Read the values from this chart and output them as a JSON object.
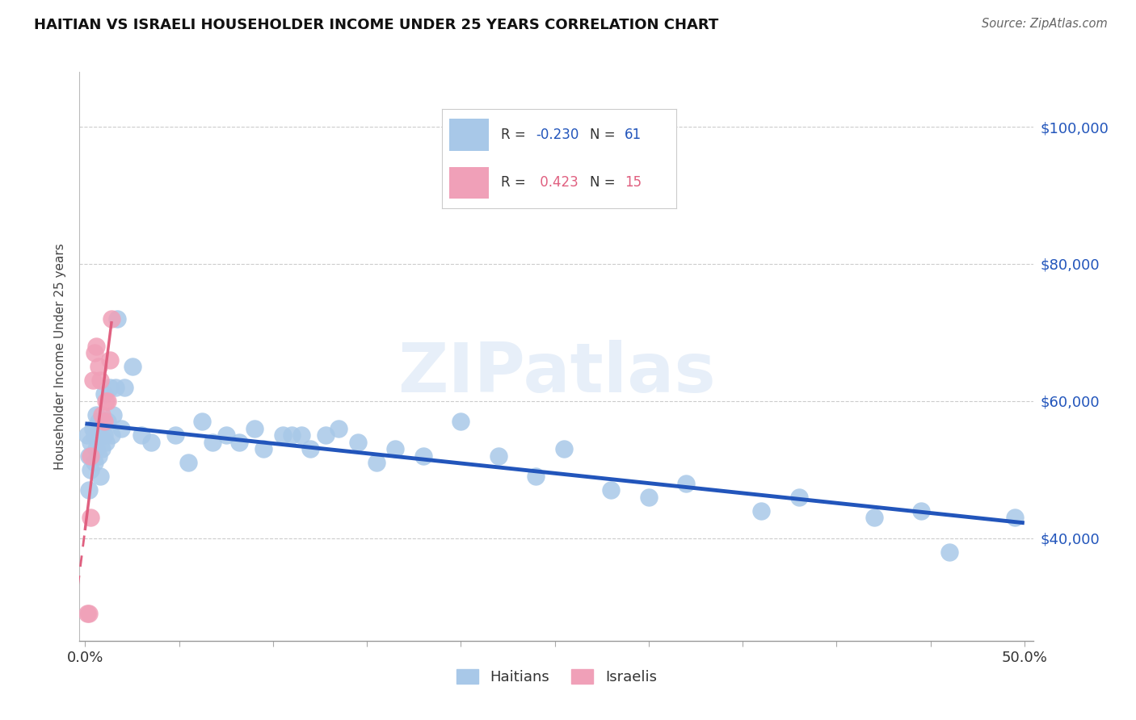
{
  "title": "HAITIAN VS ISRAELI HOUSEHOLDER INCOME UNDER 25 YEARS CORRELATION CHART",
  "source": "Source: ZipAtlas.com",
  "ylabel": "Householder Income Under 25 years",
  "haitian_color": "#a8c8e8",
  "israeli_color": "#f0a0b8",
  "trend_haitian_color": "#2255bb",
  "trend_israeli_color": "#e06080",
  "watermark": "ZIPatlas",
  "legend_haitian": "Haitians",
  "legend_israeli": "Israelis",
  "R_haitian": "-0.230",
  "N_haitian": "61",
  "R_israeli": "0.423",
  "N_israeli": "15",
  "ytick_vals": [
    40000,
    60000,
    80000,
    100000
  ],
  "ytick_labels": [
    "$40,000",
    "$60,000",
    "$80,000",
    "$100,000"
  ],
  "ylim": [
    25000,
    108000
  ],
  "xlim": [
    -0.003,
    0.505
  ],
  "haitians_x": [
    0.001,
    0.002,
    0.002,
    0.003,
    0.003,
    0.004,
    0.005,
    0.005,
    0.006,
    0.006,
    0.007,
    0.007,
    0.008,
    0.008,
    0.009,
    0.009,
    0.01,
    0.01,
    0.011,
    0.012,
    0.013,
    0.014,
    0.015,
    0.016,
    0.017,
    0.019,
    0.021,
    0.025,
    0.03,
    0.035,
    0.048,
    0.055,
    0.062,
    0.068,
    0.075,
    0.082,
    0.09,
    0.095,
    0.105,
    0.11,
    0.115,
    0.12,
    0.128,
    0.135,
    0.145,
    0.155,
    0.165,
    0.18,
    0.2,
    0.22,
    0.24,
    0.255,
    0.28,
    0.3,
    0.32,
    0.36,
    0.38,
    0.42,
    0.445,
    0.46,
    0.495
  ],
  "haitians_y": [
    55000,
    52000,
    47000,
    54000,
    50000,
    56000,
    51000,
    55000,
    58000,
    53000,
    57000,
    52000,
    55000,
    49000,
    57000,
    53000,
    61000,
    55000,
    54000,
    57000,
    62000,
    55000,
    58000,
    62000,
    72000,
    56000,
    62000,
    65000,
    55000,
    54000,
    55000,
    51000,
    57000,
    54000,
    55000,
    54000,
    56000,
    53000,
    55000,
    55000,
    55000,
    53000,
    55000,
    56000,
    54000,
    51000,
    53000,
    52000,
    57000,
    52000,
    49000,
    53000,
    47000,
    46000,
    48000,
    44000,
    46000,
    43000,
    44000,
    38000,
    43000
  ],
  "israelis_x": [
    0.001,
    0.002,
    0.003,
    0.003,
    0.004,
    0.005,
    0.006,
    0.007,
    0.008,
    0.009,
    0.01,
    0.011,
    0.012,
    0.013,
    0.014
  ],
  "israelis_y": [
    29000,
    29000,
    43000,
    52000,
    63000,
    67000,
    68000,
    65000,
    63000,
    58000,
    57000,
    60000,
    60000,
    66000,
    72000
  ]
}
